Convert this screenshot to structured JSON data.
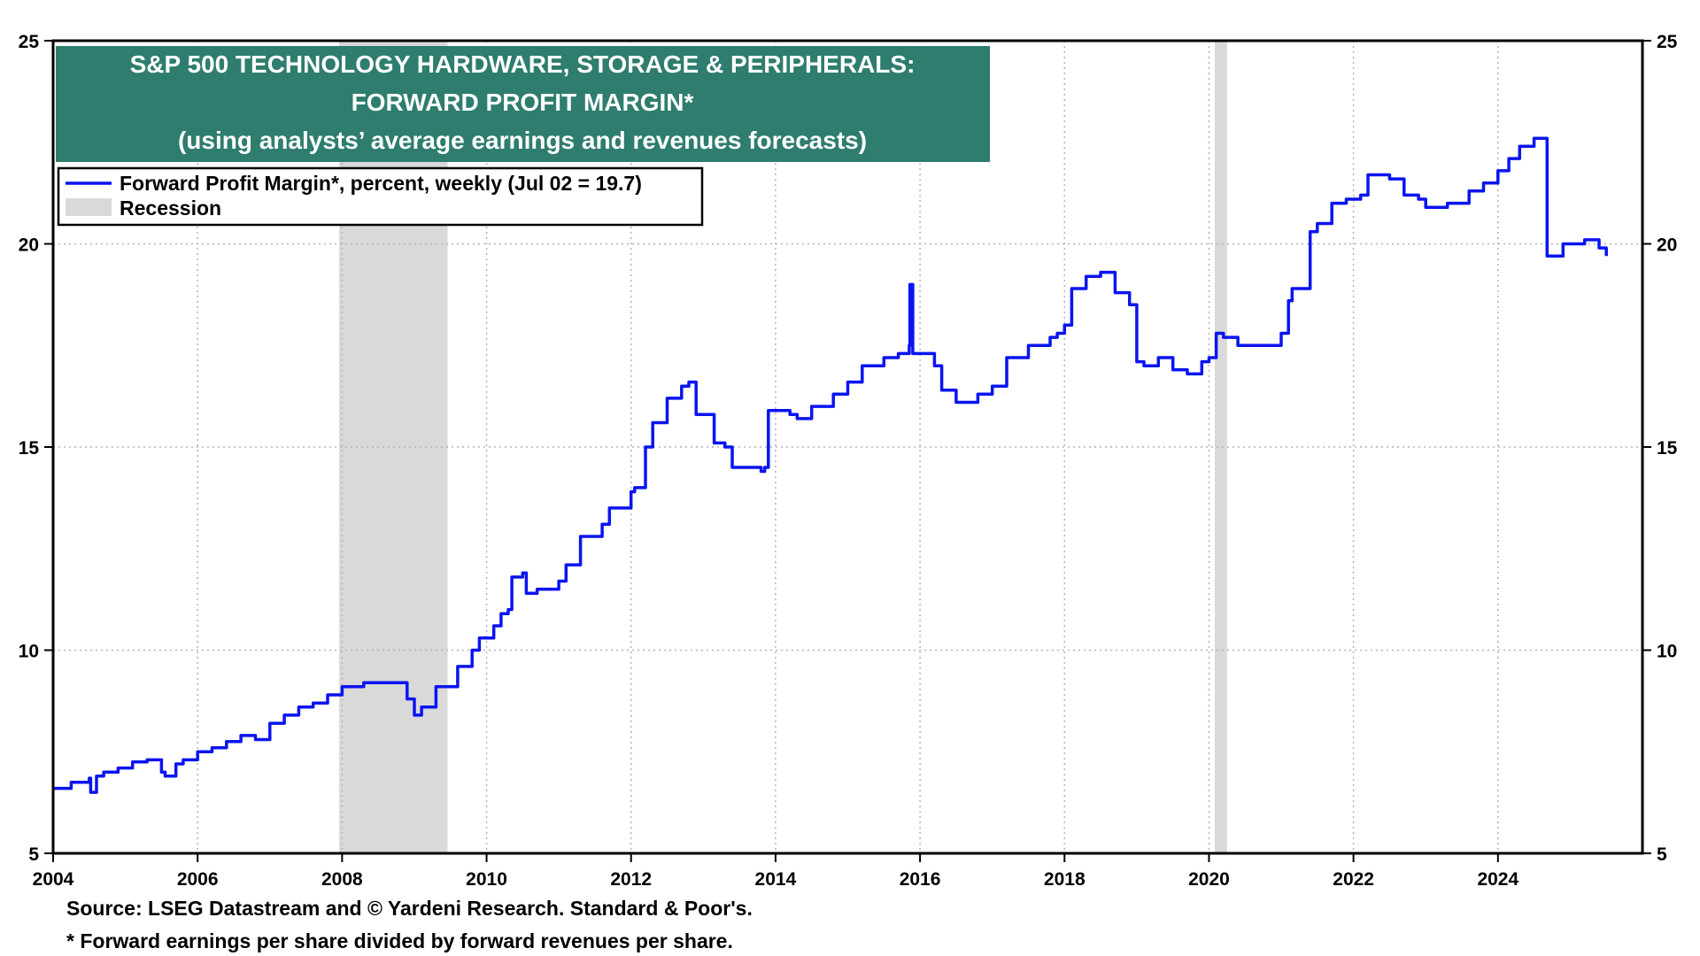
{
  "chart_data": {
    "type": "line",
    "title_lines": [
      "S&P 500 TECHNOLOGY HARDWARE, STORAGE & PERIPHERALS:",
      "FORWARD PROFIT MARGIN*",
      "(using analysts’ average earnings and revenues forecasts)"
    ],
    "legend": {
      "series_label": "Forward Profit Margin*, percent, weekly (Jul 02 = 19.7)",
      "recession_label": "Recession",
      "placement": "top-left"
    },
    "xlim": [
      2004.0,
      2026.0
    ],
    "ylim": [
      5,
      25
    ],
    "x_ticks": [
      {
        "label": "2004",
        "value": 2004
      },
      {
        "label": "2006",
        "value": 2006
      },
      {
        "label": "2008",
        "value": 2008
      },
      {
        "label": "2010",
        "value": 2010
      },
      {
        "label": "2012",
        "value": 2012
      },
      {
        "label": "2014",
        "value": 2014
      },
      {
        "label": "2016",
        "value": 2016
      },
      {
        "label": "2018",
        "value": 2018
      },
      {
        "label": "2020",
        "value": 2020
      },
      {
        "label": "2022",
        "value": 2022
      },
      {
        "label": "2024",
        "value": 2024
      }
    ],
    "y_ticks": [
      {
        "label": "5",
        "value": 5
      },
      {
        "label": "10",
        "value": 10
      },
      {
        "label": "15",
        "value": 15
      },
      {
        "label": "20",
        "value": 20
      },
      {
        "label": "25",
        "value": 25
      }
    ],
    "grid": true,
    "recessions": [
      {
        "start": 2007.96,
        "end": 2009.46
      },
      {
        "start": 2020.08,
        "end": 2020.25
      }
    ],
    "series": [
      {
        "name": "Forward Profit Margin*, percent, weekly",
        "x": [
          2004.0,
          2004.25,
          2004.5,
          2004.52,
          2004.6,
          2004.7,
          2004.9,
          2005.1,
          2005.3,
          2005.5,
          2005.55,
          2005.7,
          2005.8,
          2006.0,
          2006.2,
          2006.4,
          2006.6,
          2006.8,
          2007.0,
          2007.2,
          2007.4,
          2007.6,
          2007.8,
          2008.0,
          2008.3,
          2008.5,
          2008.9,
          2009.0,
          2009.1,
          2009.3,
          2009.6,
          2009.8,
          2009.9,
          2010.1,
          2010.2,
          2010.3,
          2010.35,
          2010.5,
          2010.55,
          2010.7,
          2011.0,
          2011.1,
          2011.3,
          2011.6,
          2011.7,
          2012.0,
          2012.05,
          2012.2,
          2012.3,
          2012.5,
          2012.7,
          2012.8,
          2012.9,
          2013.1,
          2013.15,
          2013.3,
          2013.4,
          2013.6,
          2013.8,
          2013.85,
          2013.9,
          2014.2,
          2014.3,
          2014.5,
          2014.8,
          2015.0,
          2015.2,
          2015.5,
          2015.7,
          2015.85,
          2015.86,
          2015.9,
          2016.2,
          2016.3,
          2016.5,
          2016.8,
          2017.0,
          2017.2,
          2017.5,
          2017.8,
          2017.9,
          2018.0,
          2018.1,
          2018.3,
          2018.5,
          2018.7,
          2018.9,
          2019.0,
          2019.1,
          2019.3,
          2019.5,
          2019.7,
          2019.9,
          2020.0,
          2020.1,
          2020.2,
          2020.4,
          2020.7,
          2021.0,
          2021.1,
          2021.15,
          2021.4,
          2021.5,
          2021.7,
          2021.9,
          2022.0,
          2022.1,
          2022.2,
          2022.5,
          2022.7,
          2022.9,
          2023.0,
          2023.3,
          2023.6,
          2023.8,
          2024.0,
          2024.15,
          2024.3,
          2024.5,
          2024.65,
          2024.68,
          2024.9,
          2025.2,
          2025.3,
          2025.4,
          2025.5
        ],
        "values": [
          6.6,
          6.75,
          6.85,
          6.5,
          6.9,
          7.0,
          7.1,
          7.25,
          7.3,
          7.0,
          6.9,
          7.2,
          7.3,
          7.5,
          7.6,
          7.75,
          7.9,
          7.8,
          8.2,
          8.4,
          8.6,
          8.7,
          8.9,
          9.1,
          9.2,
          9.2,
          8.8,
          8.4,
          8.6,
          9.1,
          9.6,
          10.0,
          10.3,
          10.6,
          10.9,
          11.0,
          11.8,
          11.9,
          11.4,
          11.5,
          11.7,
          12.1,
          12.8,
          13.1,
          13.5,
          13.9,
          14.0,
          15.0,
          15.6,
          16.2,
          16.5,
          16.6,
          15.8,
          15.8,
          15.1,
          15.0,
          14.5,
          14.5,
          14.4,
          14.5,
          15.9,
          15.8,
          15.7,
          16.0,
          16.3,
          16.6,
          17.0,
          17.2,
          17.3,
          17.5,
          19.0,
          17.3,
          17.0,
          16.4,
          16.1,
          16.3,
          16.5,
          17.2,
          17.5,
          17.7,
          17.8,
          18.0,
          18.9,
          19.2,
          19.3,
          18.8,
          18.5,
          17.1,
          17.0,
          17.2,
          16.9,
          16.8,
          17.1,
          17.2,
          17.8,
          17.7,
          17.5,
          17.5,
          17.8,
          18.6,
          18.9,
          20.3,
          20.5,
          21.0,
          21.1,
          21.1,
          21.2,
          21.7,
          21.6,
          21.2,
          21.1,
          20.9,
          21.0,
          21.3,
          21.5,
          21.8,
          22.1,
          22.4,
          22.6,
          22.6,
          19.7,
          20.0,
          20.1,
          20.1,
          19.9,
          19.7
        ]
      }
    ]
  },
  "footnotes": [
    "Source: LSEG Datastream and © Yardeni Research. Standard & Poor's.",
    "* Forward earnings per share divided by forward revenues per share."
  ],
  "colors": {
    "series_line": "#0a14f0",
    "title_box": "#2e7d6e",
    "recession": "#d9d9d9",
    "grid": "#b3b3b3"
  }
}
